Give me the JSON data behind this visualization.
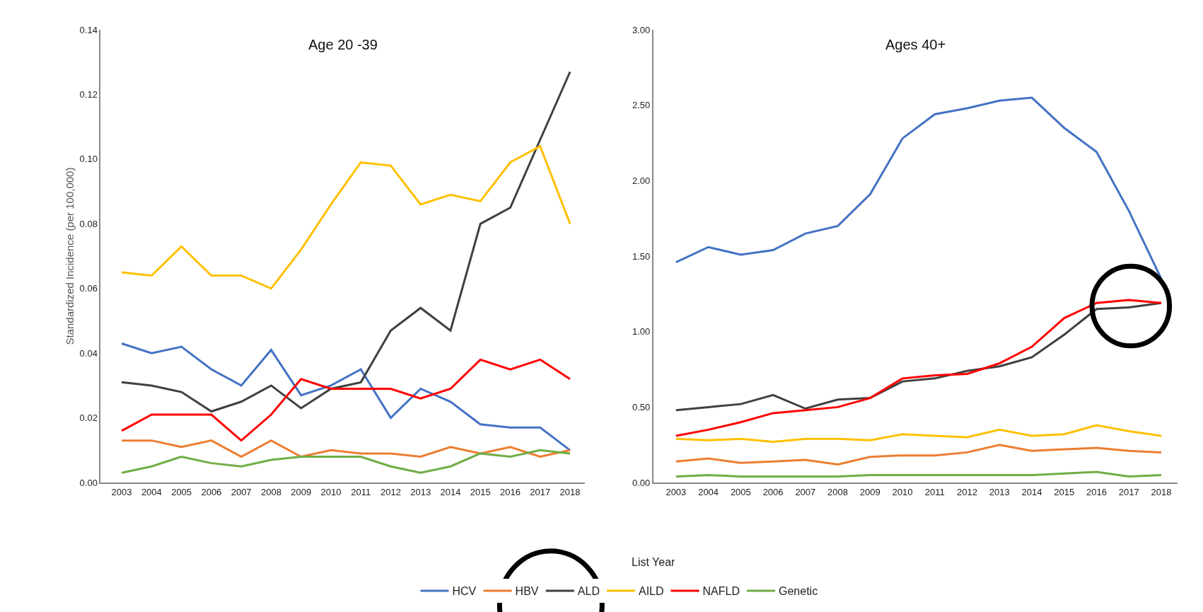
{
  "chart_data": [
    {
      "type": "line",
      "title": "Age 20 -39",
      "ylabel": "Standardized Incidence (per 100,000)",
      "xlabel": "List Year",
      "legend": "bottom",
      "grid": false,
      "categories": [
        "2003",
        "2004",
        "2005",
        "2006",
        "2007",
        "2008",
        "2009",
        "2010",
        "2011",
        "2012",
        "2013",
        "2014",
        "2015",
        "2016",
        "2017",
        "2018"
      ],
      "ylim": [
        0,
        0.14
      ],
      "yticks": [
        {
          "value": 0,
          "label": "0.00"
        },
        {
          "value": 0.02,
          "label": "0.02"
        },
        {
          "value": 0.04,
          "label": "0.04"
        },
        {
          "value": 0.06,
          "label": "0.06"
        },
        {
          "value": 0.08,
          "label": "0.08"
        },
        {
          "value": 0.1,
          "label": "0.10"
        },
        {
          "value": 0.12,
          "label": "0.12"
        },
        {
          "value": 0.14,
          "label": "0.14"
        }
      ],
      "series": [
        {
          "name": "HCV",
          "color": "#4472c4",
          "values": [
            0.043,
            0.04,
            0.042,
            0.035,
            0.03,
            0.041,
            0.027,
            0.03,
            0.035,
            0.02,
            0.029,
            0.025,
            0.018,
            0.017,
            0.017,
            0.01
          ]
        },
        {
          "name": "HBV",
          "color": "#ed7d31",
          "values": [
            0.013,
            0.013,
            0.011,
            0.013,
            0.008,
            0.013,
            0.008,
            0.01,
            0.009,
            0.009,
            0.008,
            0.011,
            0.009,
            0.011,
            0.008,
            0.01
          ]
        },
        {
          "name": "ALD",
          "color": "#404040",
          "values": [
            0.031,
            0.03,
            0.028,
            0.022,
            0.025,
            0.03,
            0.023,
            0.029,
            0.031,
            0.047,
            0.054,
            0.047,
            0.08,
            0.085,
            0.106,
            0.127
          ]
        },
        {
          "name": "AILD",
          "color": "#ffc000",
          "values": [
            0.065,
            0.064,
            0.073,
            0.064,
            0.064,
            0.06,
            0.072,
            0.086,
            0.099,
            0.098,
            0.086,
            0.089,
            0.087,
            0.099,
            0.104,
            0.08
          ]
        },
        {
          "name": "NAFLD",
          "color": "#ff0000",
          "values": [
            0.016,
            0.021,
            0.021,
            0.021,
            0.013,
            0.021,
            0.032,
            0.029,
            0.029,
            0.029,
            0.026,
            0.029,
            0.038,
            0.035,
            0.038,
            0.032
          ]
        },
        {
          "name": "Genetic",
          "color": "#70ad47",
          "values": [
            0.003,
            0.005,
            0.008,
            0.006,
            0.005,
            0.007,
            0.008,
            0.008,
            0.008,
            0.005,
            0.003,
            0.005,
            0.009,
            0.008,
            0.01,
            0.009
          ]
        }
      ]
    },
    {
      "type": "line",
      "title": "Ages 40+",
      "grid": false,
      "categories": [
        "2003",
        "2004",
        "2005",
        "2006",
        "2007",
        "2008",
        "2009",
        "2010",
        "2011",
        "2012",
        "2013",
        "2014",
        "2015",
        "2016",
        "2017",
        "2018"
      ],
      "ylim": [
        0,
        3
      ],
      "yticks": [
        {
          "value": 0,
          "label": "0.00"
        },
        {
          "value": 0.5,
          "label": "0.50"
        },
        {
          "value": 1,
          "label": "1.00"
        },
        {
          "value": 1.5,
          "label": "1.50"
        },
        {
          "value": 2,
          "label": "2.00"
        },
        {
          "value": 2.5,
          "label": "2.50"
        },
        {
          "value": 3,
          "label": "3.00"
        }
      ],
      "series": [
        {
          "color": "#4472c4",
          "values": [
            1.46,
            1.56,
            1.51,
            1.54,
            1.65,
            1.7,
            1.91,
            2.28,
            2.44,
            2.48,
            2.53,
            2.55,
            2.35,
            2.19,
            1.8,
            1.35
          ]
        },
        {
          "color": "#ed7d31",
          "values": [
            0.14,
            0.16,
            0.13,
            0.14,
            0.15,
            0.12,
            0.17,
            0.18,
            0.18,
            0.2,
            0.25,
            0.21,
            0.22,
            0.23,
            0.21,
            0.2
          ]
        },
        {
          "color": "#404040",
          "values": [
            0.48,
            0.5,
            0.52,
            0.58,
            0.49,
            0.55,
            0.56,
            0.67,
            0.69,
            0.74,
            0.77,
            0.83,
            0.98,
            1.15,
            1.16,
            1.19
          ]
        },
        {
          "color": "#ffc000",
          "values": [
            0.29,
            0.28,
            0.29,
            0.27,
            0.29,
            0.29,
            0.28,
            0.32,
            0.31,
            0.3,
            0.35,
            0.31,
            0.32,
            0.38,
            0.34,
            0.31
          ]
        },
        {
          "color": "#ff0000",
          "values": [
            0.31,
            0.35,
            0.4,
            0.46,
            0.48,
            0.5,
            0.56,
            0.69,
            0.71,
            0.72,
            0.79,
            0.9,
            1.09,
            1.19,
            1.21,
            1.19
          ]
        },
        {
          "color": "#70ad47",
          "values": [
            0.04,
            0.05,
            0.04,
            0.04,
            0.04,
            0.04,
            0.05,
            0.05,
            0.05,
            0.05,
            0.05,
            0.05,
            0.06,
            0.07,
            0.04,
            0.05
          ]
        }
      ]
    }
  ]
}
